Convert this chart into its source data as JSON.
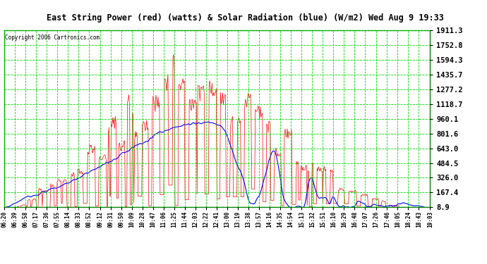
{
  "title": "East String Power (red) (watts) & Solar Radiation (blue) (W/m2) Wed Aug 9 19:33",
  "copyright": "Copyright 2006 Cartronics.com",
  "y_ticks": [
    8.9,
    167.4,
    326.0,
    484.5,
    643.0,
    801.6,
    960.1,
    1118.7,
    1277.2,
    1435.7,
    1594.3,
    1752.8,
    1911.3
  ],
  "ymin": 8.9,
  "ymax": 1911.3,
  "plot_bg": "#ffffff",
  "fig_bg": "#ffffff",
  "grid_color": "#00dd00",
  "red_color": "#ff0000",
  "blue_color": "#0000ff",
  "x_labels": [
    "06:20",
    "06:39",
    "06:58",
    "07:17",
    "07:36",
    "07:55",
    "08:14",
    "08:33",
    "08:52",
    "09:12",
    "09:31",
    "09:50",
    "10:09",
    "10:28",
    "10:47",
    "11:06",
    "11:25",
    "11:44",
    "12:03",
    "12:22",
    "12:41",
    "13:00",
    "13:19",
    "13:38",
    "13:57",
    "14:16",
    "14:35",
    "14:54",
    "15:13",
    "15:32",
    "15:51",
    "16:10",
    "16:29",
    "16:48",
    "17:07",
    "17:26",
    "17:46",
    "18:05",
    "18:24",
    "18:43",
    "19:03"
  ]
}
